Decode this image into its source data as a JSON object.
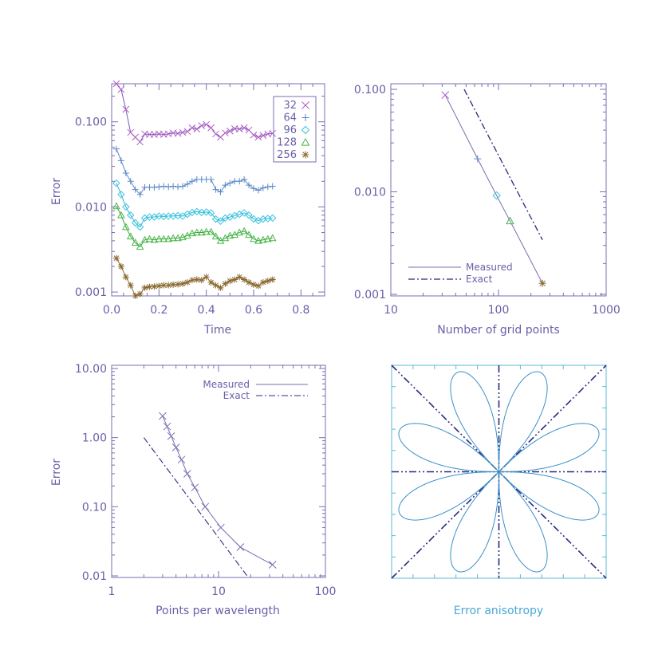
{
  "colors": {
    "axis": "#7a6fb0",
    "text": "#6a5fa8",
    "exact": "#2a2a80",
    "aniso_frame": "#5bb8d8",
    "aniso_curve": "#3a8fc8",
    "aniso_title": "#4aa8d8"
  },
  "chart_data": [
    {
      "id": "p1",
      "type": "line",
      "xlabel": "Time",
      "ylabel": "Error",
      "xscale": "linear",
      "yscale": "log",
      "xlim": [
        0.0,
        0.9
      ],
      "ylim": [
        0.0009,
        0.28
      ],
      "xticks": [
        0.0,
        0.2,
        0.4,
        0.6,
        0.8
      ],
      "xtick_labels": [
        "0.0",
        "0.2",
        "0.4",
        "0.6",
        "0.8"
      ],
      "yticks": [
        0.001,
        0.01,
        0.1
      ],
      "ytick_labels": [
        "0.001",
        "0.010",
        "0.100"
      ],
      "legend": "top-right",
      "x": [
        0.02,
        0.04,
        0.06,
        0.08,
        0.1,
        0.12,
        0.14,
        0.16,
        0.18,
        0.2,
        0.22,
        0.24,
        0.26,
        0.28,
        0.3,
        0.32,
        0.34,
        0.36,
        0.38,
        0.4,
        0.42,
        0.44,
        0.46,
        0.48,
        0.5,
        0.52,
        0.54,
        0.56,
        0.58,
        0.6,
        0.62,
        0.64,
        0.66,
        0.68
      ],
      "series": [
        {
          "name": "32",
          "marker": "x",
          "color": "#b060c8",
          "line": "#7b55b5",
          "values": [
            0.28,
            0.24,
            0.14,
            0.075,
            0.066,
            0.058,
            0.072,
            0.071,
            0.071,
            0.072,
            0.071,
            0.072,
            0.074,
            0.073,
            0.075,
            0.077,
            0.085,
            0.082,
            0.09,
            0.093,
            0.085,
            0.072,
            0.066,
            0.074,
            0.078,
            0.083,
            0.082,
            0.085,
            0.08,
            0.07,
            0.066,
            0.069,
            0.072,
            0.073
          ]
        },
        {
          "name": "64",
          "marker": "+",
          "color": "#5a88c8",
          "line": "#5a88c8",
          "values": [
            0.048,
            0.035,
            0.025,
            0.02,
            0.016,
            0.014,
            0.017,
            0.017,
            0.017,
            0.0172,
            0.0175,
            0.0172,
            0.0175,
            0.0172,
            0.0175,
            0.0185,
            0.02,
            0.021,
            0.021,
            0.021,
            0.021,
            0.016,
            0.015,
            0.018,
            0.019,
            0.02,
            0.02,
            0.021,
            0.018,
            0.0165,
            0.0157,
            0.0167,
            0.0172,
            0.0175
          ]
        },
        {
          "name": "96",
          "marker": "diamond",
          "color": "#38c4dc",
          "line": "#38b0d8",
          "values": [
            0.019,
            0.014,
            0.01,
            0.008,
            0.0065,
            0.0058,
            0.0074,
            0.0076,
            0.0076,
            0.0078,
            0.0077,
            0.0078,
            0.0078,
            0.0079,
            0.0078,
            0.0082,
            0.0086,
            0.0088,
            0.0086,
            0.0087,
            0.0085,
            0.0072,
            0.0068,
            0.0074,
            0.0076,
            0.0079,
            0.0082,
            0.0085,
            0.008,
            0.0072,
            0.0069,
            0.0072,
            0.0073,
            0.0074
          ]
        },
        {
          "name": "128",
          "marker": "triangle",
          "color": "#48b848",
          "line": "#40a040",
          "values": [
            0.0102,
            0.008,
            0.0058,
            0.0045,
            0.0038,
            0.0034,
            0.0041,
            0.0042,
            0.0041,
            0.0042,
            0.0042,
            0.0042,
            0.0043,
            0.0043,
            0.0044,
            0.0046,
            0.0049,
            0.005,
            0.005,
            0.0051,
            0.0051,
            0.0045,
            0.004,
            0.0043,
            0.0046,
            0.0047,
            0.005,
            0.0052,
            0.0047,
            0.0042,
            0.004,
            0.0041,
            0.0042,
            0.0043
          ]
        },
        {
          "name": "256",
          "marker": "star",
          "color": "#8a6a30",
          "line": "#8a6a30",
          "values": [
            0.0025,
            0.002,
            0.0015,
            0.0012,
            0.0009,
            0.00095,
            0.00112,
            0.00115,
            0.00116,
            0.00118,
            0.0012,
            0.0012,
            0.00122,
            0.00123,
            0.00125,
            0.0013,
            0.00138,
            0.0014,
            0.00138,
            0.0015,
            0.0013,
            0.0012,
            0.00112,
            0.00125,
            0.00135,
            0.0014,
            0.0015,
            0.0014,
            0.0013,
            0.00122,
            0.00118,
            0.0013,
            0.00135,
            0.0014
          ]
        }
      ]
    },
    {
      "id": "p2",
      "type": "line",
      "xlabel": "Number of grid points",
      "ylabel": "",
      "xscale": "log",
      "yscale": "log",
      "xlim": [
        10,
        1000
      ],
      "ylim": [
        0.001,
        0.1
      ],
      "xticks": [
        10,
        100,
        1000
      ],
      "xtick_labels": [
        "10",
        "100",
        "1000"
      ],
      "yticks": [
        0.001,
        0.01,
        0.1
      ],
      "ytick_labels": [
        "0.001",
        "0.010",
        "0.100"
      ],
      "legend": "bottom-left",
      "series": [
        {
          "name": "Measured",
          "style": "solid",
          "x": [
            32,
            64,
            96,
            128,
            256
          ],
          "values": [
            0.088,
            0.021,
            0.0092,
            0.0052,
            0.00128
          ]
        },
        {
          "name": "Exact",
          "style": "dashdot",
          "x": [
            48,
            256
          ],
          "values": [
            0.1,
            0.0034
          ]
        }
      ],
      "point_markers": [
        {
          "marker": "x",
          "color": "#b060c8"
        },
        {
          "marker": "+",
          "color": "#5a88c8"
        },
        {
          "marker": "diamond",
          "color": "#38c4dc"
        },
        {
          "marker": "triangle",
          "color": "#48b848"
        },
        {
          "marker": "star",
          "color": "#8a6a30"
        }
      ]
    },
    {
      "id": "p3",
      "type": "line",
      "xlabel": "Points per wavelength",
      "ylabel": "Error",
      "xscale": "log",
      "yscale": "log",
      "xlim": [
        1,
        100
      ],
      "ylim": [
        0.01,
        10
      ],
      "xticks": [
        1,
        10,
        100
      ],
      "xtick_labels": [
        "1",
        "10",
        "100"
      ],
      "yticks": [
        0.01,
        0.1,
        1,
        10
      ],
      "ytick_labels": [
        "0.01",
        "0.10",
        "1.00",
        "10.00"
      ],
      "legend": "top-right",
      "series": [
        {
          "name": "Measured",
          "style": "solid",
          "marker": "x",
          "x": [
            3.0,
            3.3,
            3.6,
            4.0,
            4.5,
            5.1,
            6.0,
            7.5,
            10.5,
            16.0,
            32.0
          ],
          "values": [
            2.05,
            1.45,
            1.05,
            0.72,
            0.48,
            0.3,
            0.19,
            0.1,
            0.05,
            0.026,
            0.0145
          ]
        },
        {
          "name": "Exact",
          "style": "dashdot",
          "x": [
            2.0,
            18.5
          ],
          "values": [
            1.0,
            0.01
          ]
        }
      ]
    },
    {
      "id": "p4",
      "type": "polar",
      "title": "Error anisotropy",
      "petals": 8,
      "lines": [
        "horizontal",
        "vertical",
        "diagonal",
        "anti-diagonal"
      ]
    }
  ]
}
